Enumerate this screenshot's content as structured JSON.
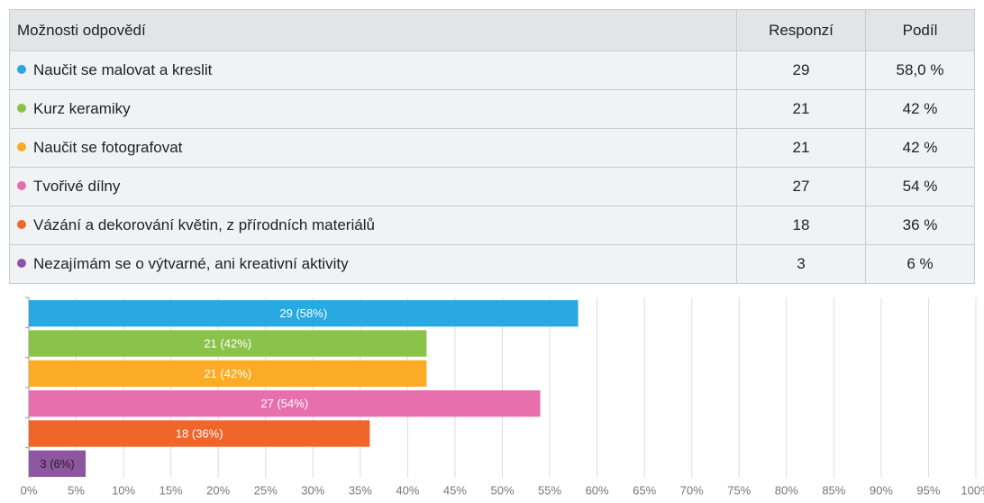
{
  "table": {
    "headers": [
      "Možnosti odpovědí",
      "Responzí",
      "Podíl"
    ],
    "rows": [
      [
        "Naučit se malovat a kreslit",
        "29",
        "58,0 %"
      ],
      [
        "Kurz keramiky",
        "21",
        "42 %"
      ],
      [
        "Naučit se fotografovat",
        "21",
        "42 %"
      ],
      [
        "Tvořivé dílny",
        "27",
        "54 %"
      ],
      [
        "Vázání a dekorování květin, z přírodních materiálů",
        "18",
        "36 %"
      ],
      [
        "Nezajímám se o výtvarné, ani kreativní aktivity",
        "3",
        "6 %"
      ]
    ]
  },
  "chart_data": {
    "type": "bar",
    "orientation": "horizontal",
    "values": [
      58,
      42,
      42,
      54,
      36,
      6
    ],
    "value_labels": [
      "29 (58%)",
      "21 (42%)",
      "21 (42%)",
      "27 (54%)",
      "18 (36%)",
      "3 (6%)"
    ],
    "colors": [
      "#29a9e1",
      "#8bc34a",
      "#fbab26",
      "#e76fae",
      "#f0652a",
      "#8e56a1"
    ],
    "xlim": [
      0,
      100
    ],
    "xticks": [
      {
        "value": 0,
        "label": "0%"
      },
      {
        "value": 5,
        "label": "5%"
      },
      {
        "value": 10,
        "label": "10%"
      },
      {
        "value": 15,
        "label": "15%"
      },
      {
        "value": 20,
        "label": "20%"
      },
      {
        "value": 25,
        "label": "25%"
      },
      {
        "value": 30,
        "label": "30%"
      },
      {
        "value": 35,
        "label": "35%"
      },
      {
        "value": 40,
        "label": "40%"
      },
      {
        "value": 45,
        "label": "45%"
      },
      {
        "value": 50,
        "label": "50%"
      },
      {
        "value": 55,
        "label": "55%"
      },
      {
        "value": 60,
        "label": "60%"
      },
      {
        "value": 65,
        "label": "65%"
      },
      {
        "value": 70,
        "label": "70%"
      },
      {
        "value": 75,
        "label": "75%"
      },
      {
        "value": 80,
        "label": "80%"
      },
      {
        "value": 85,
        "label": "85%"
      },
      {
        "value": 90,
        "label": "90%"
      },
      {
        "value": 95,
        "label": "95%"
      },
      {
        "value": 100,
        "label": "100%"
      }
    ],
    "grid": true
  }
}
